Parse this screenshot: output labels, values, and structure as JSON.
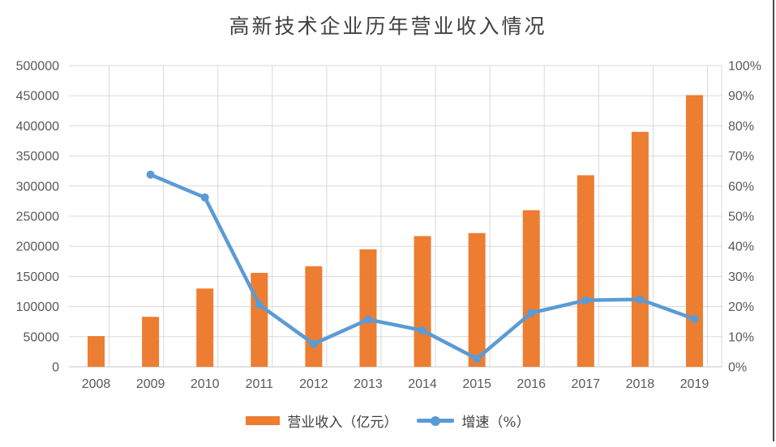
{
  "chart_data": {
    "type": "bar",
    "subtype": "combo-bar-line-dual-axis",
    "title": "高新技术企业历年营业收入情况",
    "categories": [
      "2008",
      "2009",
      "2010",
      "2011",
      "2012",
      "2013",
      "2014",
      "2015",
      "2016",
      "2017",
      "2018",
      "2019"
    ],
    "series": [
      {
        "name": "营业收入（亿元）",
        "type": "bar",
        "axis": "left",
        "color": "#ED7D31",
        "values": [
          51000,
          83000,
          130000,
          156000,
          167000,
          195000,
          217000,
          222000,
          260000,
          318000,
          390000,
          451000
        ]
      },
      {
        "name": "增速（%）",
        "type": "line",
        "axis": "right",
        "color": "#5B9BD5",
        "values": [
          null,
          63.8,
          56.2,
          20.6,
          7.6,
          15.7,
          12.1,
          2.7,
          17.9,
          22.1,
          22.4,
          15.9
        ]
      }
    ],
    "left_axis": {
      "min": 0,
      "max": 500000,
      "step": 50000,
      "ticks": [
        "0",
        "50000",
        "100000",
        "150000",
        "200000",
        "250000",
        "300000",
        "350000",
        "400000",
        "450000",
        "500000"
      ]
    },
    "right_axis": {
      "min": 0,
      "max": 100,
      "step": 10,
      "ticks": [
        "0%",
        "10%",
        "20%",
        "30%",
        "40%",
        "50%",
        "60%",
        "70%",
        "80%",
        "90%",
        "100%"
      ]
    },
    "legend_position": "bottom",
    "grid": {
      "horizontal": true,
      "vertical": true,
      "color": "#D9D9D9"
    },
    "colors": {
      "bar": "#ED7D31",
      "line": "#5B9BD5",
      "gridline": "#D9D9D9",
      "tick_text": "#595959",
      "title_text": "#404040",
      "window_edge": "#4d4d4d"
    }
  }
}
